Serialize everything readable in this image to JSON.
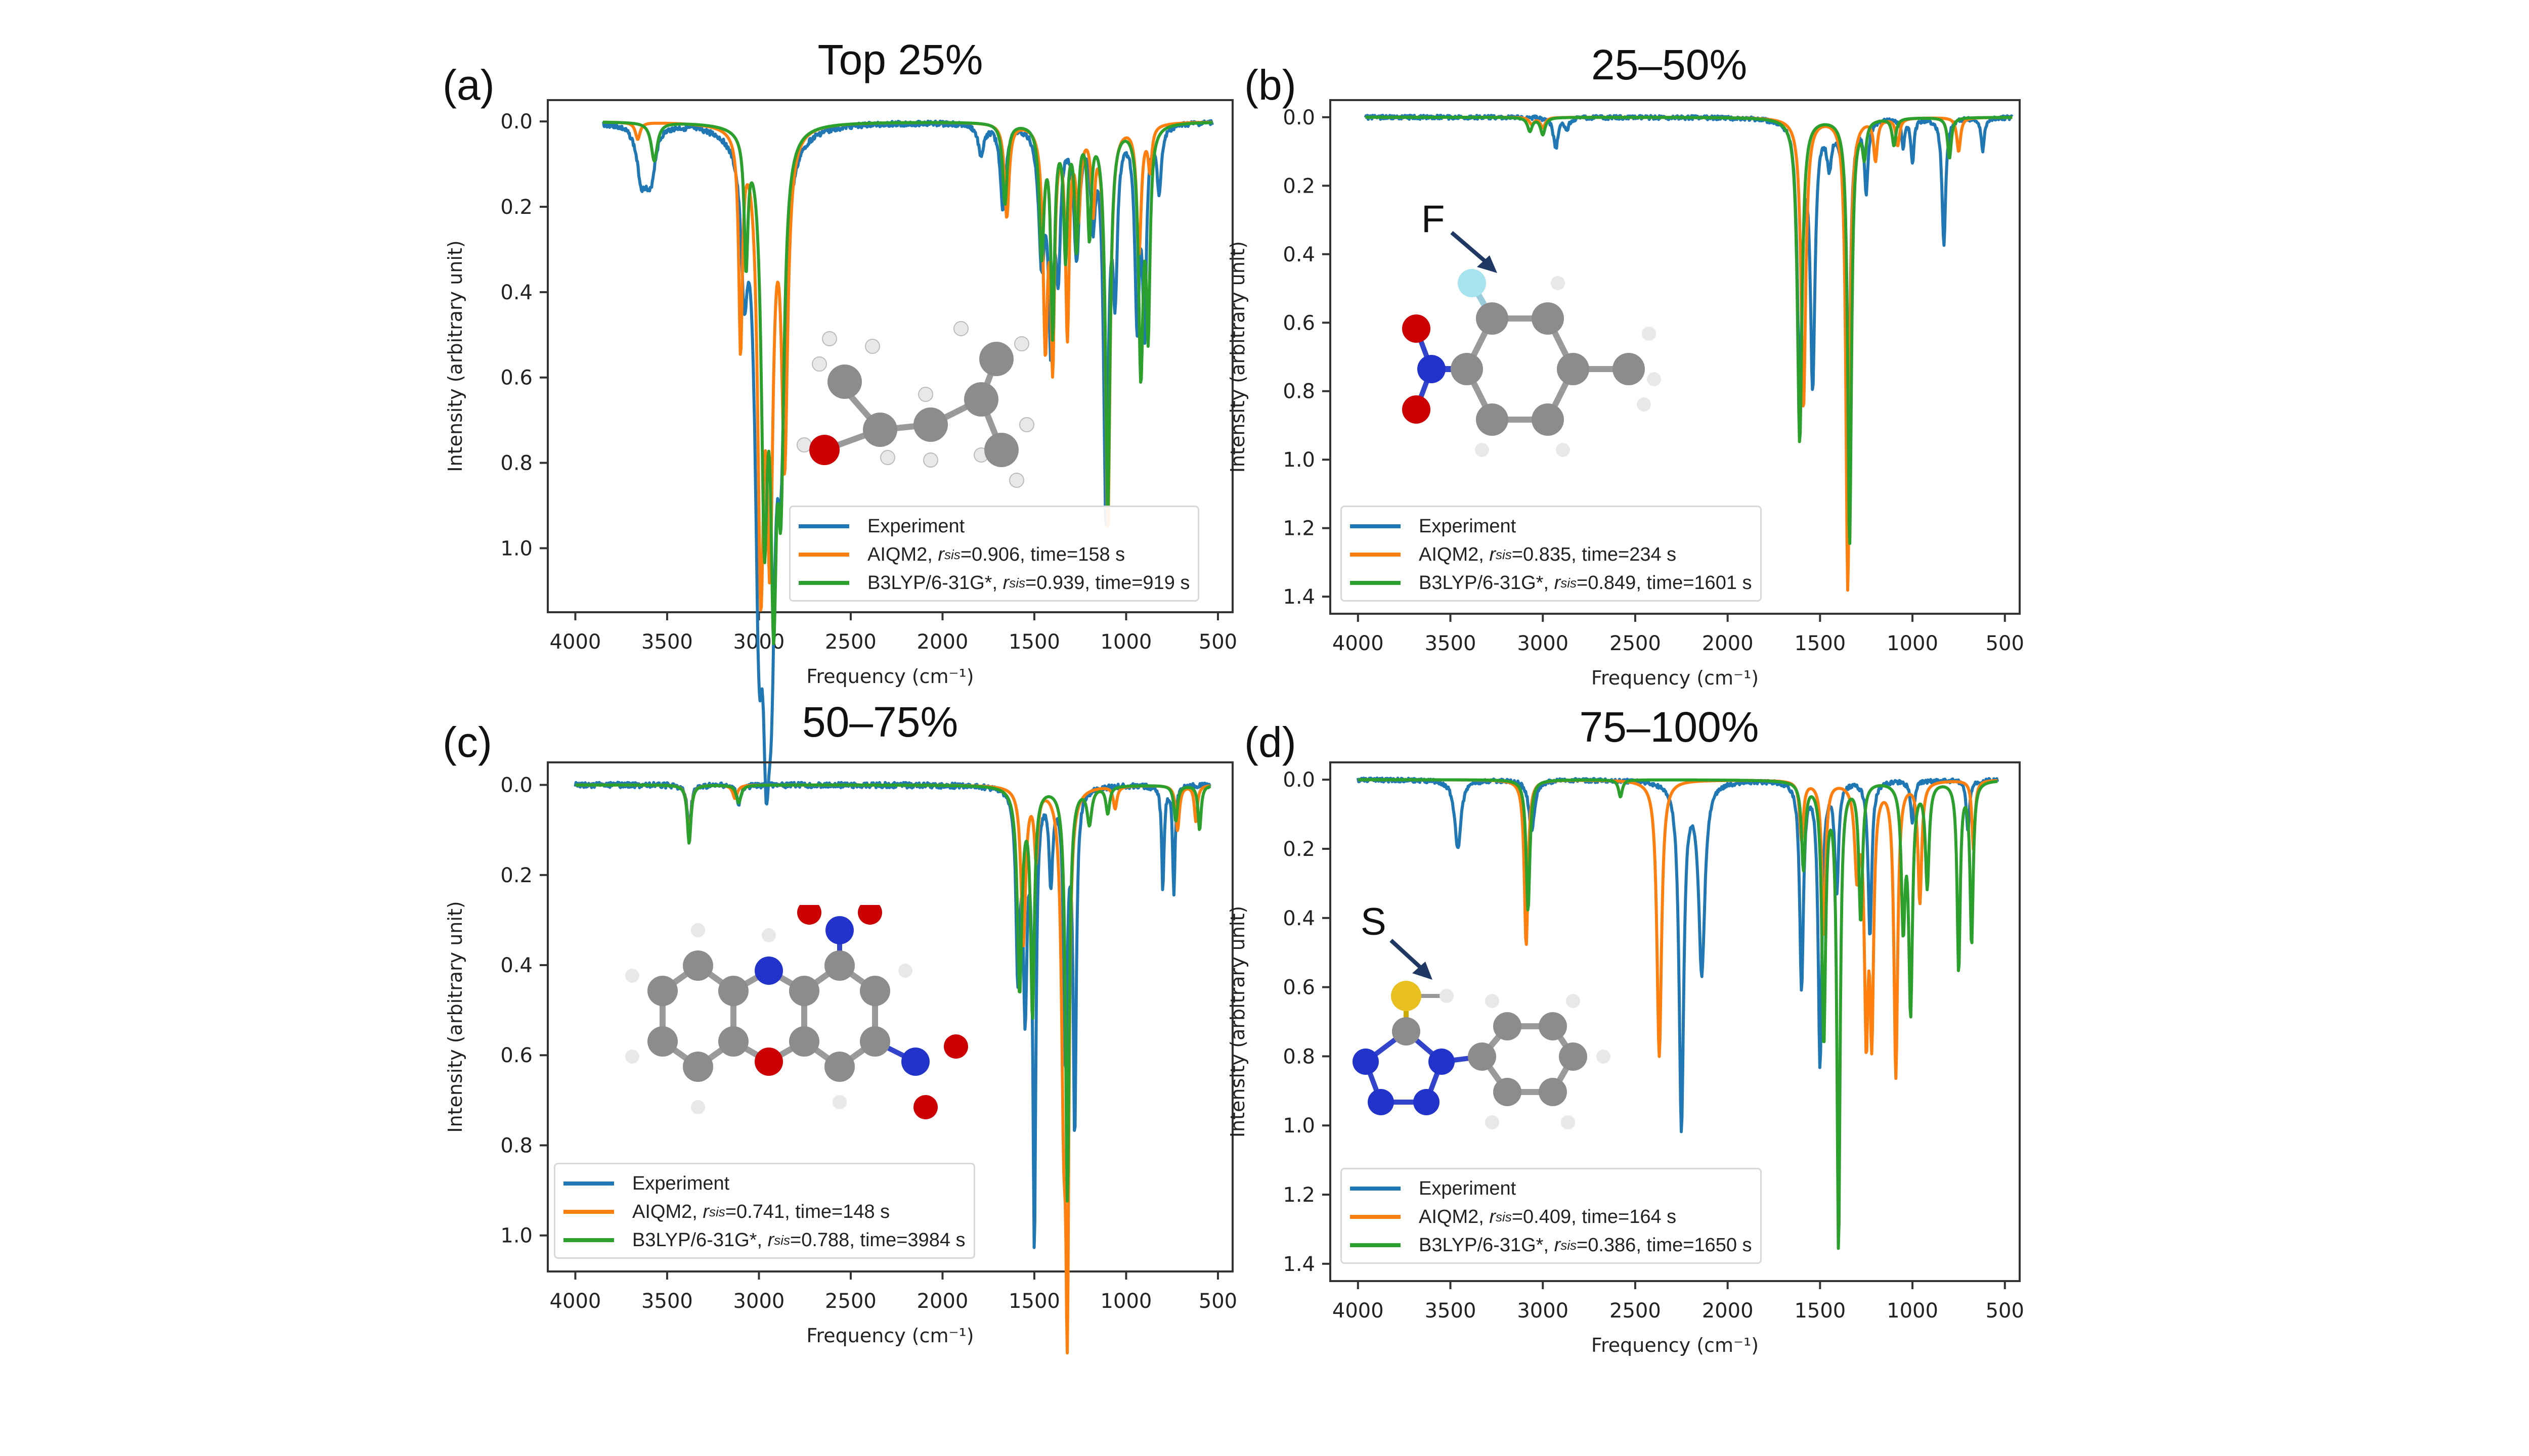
{
  "colors": {
    "experiment": "#1f77b4",
    "aiqm2": "#ff7f0e",
    "b3lyp": "#2ca02c",
    "arrow": "#1f3864"
  },
  "chart_data": [
    {
      "id": "a",
      "type": "line",
      "panel_label": "(a)",
      "title": "Top 25%",
      "xlabel": "Frequency (cm⁻¹)",
      "ylabel": "Intensity (arbitrary unit)",
      "xlim": [
        4150,
        420
      ],
      "ylim": [
        -0.05,
        1.15
      ],
      "y_inverted": true,
      "xticks": [
        4000,
        3500,
        3000,
        2500,
        2000,
        1500,
        1000,
        500
      ],
      "yticks": [
        "0.0",
        "0.2",
        "0.4",
        "0.6",
        "0.8",
        "1.0"
      ],
      "legend_position": "lower-right",
      "molecule_label": "",
      "series": [
        {
          "name": "Experiment",
          "method": "Experiment",
          "rsis": null,
          "time": null,
          "color_key": "experiment",
          "x_range": [
            3850,
            530
          ],
          "peaks": [
            [
              3640,
              0.12,
              30
            ],
            [
              3600,
              0.08,
              25
            ],
            [
              3580,
              0.06,
              25
            ],
            [
              3000,
              0.92,
              25
            ],
            [
              2960,
              0.95,
              25
            ],
            [
              2930,
              0.8,
              25
            ],
            [
              2880,
              0.6,
              25
            ],
            [
              3080,
              0.3,
              20
            ],
            [
              1790,
              0.07,
              20
            ],
            [
              1670,
              0.2,
              18
            ],
            [
              1460,
              0.3,
              20
            ],
            [
              1410,
              0.48,
              15
            ],
            [
              1370,
              0.3,
              15
            ],
            [
              1270,
              0.3,
              18
            ],
            [
              1180,
              0.2,
              15
            ],
            [
              1110,
              0.9,
              15
            ],
            [
              1060,
              0.35,
              15
            ],
            [
              940,
              0.45,
              15
            ],
            [
              900,
              0.45,
              12
            ],
            [
              820,
              0.15,
              15
            ]
          ]
        },
        {
          "name": "AIQM2, r_sis=0.906, time=158 s",
          "method": "AIQM2",
          "rsis": "0.906",
          "time": "158 s",
          "color_key": "aiqm2",
          "x_range": [
            3850,
            530
          ],
          "peaks": [
            [
              3660,
              0.04,
              15
            ],
            [
              3100,
              0.5,
              12
            ],
            [
              2990,
              1.0,
              20
            ],
            [
              2940,
              0.9,
              20
            ],
            [
              2860,
              0.75,
              20
            ],
            [
              1650,
              0.22,
              15
            ],
            [
              1440,
              0.5,
              15
            ],
            [
              1400,
              0.52,
              12
            ],
            [
              1320,
              0.48,
              12
            ],
            [
              1260,
              0.2,
              15
            ],
            [
              1180,
              0.18,
              12
            ],
            [
              1100,
              0.95,
              15
            ],
            [
              930,
              0.3,
              15
            ],
            [
              870,
              0.1,
              12
            ]
          ]
        },
        {
          "name": "B3LYP/6-31G*, r_sis=0.939, time=919 s",
          "method": "B3LYP/6-31G*",
          "rsis": "0.939",
          "time": "919 s",
          "color_key": "b3lyp",
          "x_range": [
            3850,
            530
          ],
          "peaks": [
            [
              3570,
              0.09,
              20
            ],
            [
              3070,
              0.3,
              12
            ],
            [
              2970,
              0.86,
              20
            ],
            [
              2920,
              0.96,
              20
            ],
            [
              2880,
              0.72,
              20
            ],
            [
              1660,
              0.19,
              15
            ],
            [
              1460,
              0.3,
              15
            ],
            [
              1400,
              0.48,
              12
            ],
            [
              1330,
              0.3,
              12
            ],
            [
              1270,
              0.28,
              12
            ],
            [
              1200,
              0.25,
              12
            ],
            [
              1100,
              0.9,
              15
            ],
            [
              920,
              0.57,
              15
            ],
            [
              880,
              0.45,
              12
            ]
          ]
        }
      ]
    },
    {
      "id": "b",
      "type": "line",
      "panel_label": "(b)",
      "title": "25–50%",
      "xlabel": "Frequency (cm⁻¹)",
      "ylabel": "Intensity (arbitrary unit)",
      "xlim": [
        4150,
        420
      ],
      "ylim": [
        -0.05,
        1.45
      ],
      "y_inverted": true,
      "xticks": [
        4000,
        3500,
        3000,
        2500,
        2000,
        1500,
        1000,
        500
      ],
      "yticks": [
        "0.0",
        "0.2",
        "0.4",
        "0.6",
        "0.8",
        "1.0",
        "1.2",
        "1.4"
      ],
      "legend_position": "lower-left",
      "molecule_label": "F",
      "series": [
        {
          "name": "Experiment",
          "method": "Experiment",
          "rsis": null,
          "time": null,
          "color_key": "experiment",
          "x_range": [
            3960,
            460
          ],
          "peaks": [
            [
              2930,
              0.09,
              15
            ],
            [
              2870,
              0.03,
              15
            ],
            [
              1610,
              0.78,
              15
            ],
            [
              1540,
              0.76,
              15
            ],
            [
              1450,
              0.12,
              15
            ],
            [
              1350,
              1.2,
              12
            ],
            [
              1250,
              0.2,
              12
            ],
            [
              1050,
              0.08,
              10
            ],
            [
              1000,
              0.13,
              10
            ],
            [
              830,
              0.37,
              12
            ],
            [
              620,
              0.1,
              10
            ]
          ]
        },
        {
          "name": "AIQM2, r_sis=0.835, time=234 s",
          "method": "AIQM2",
          "rsis": "0.835",
          "time": "234 s",
          "color_key": "aiqm2",
          "x_range": [
            3960,
            460
          ],
          "peaks": [
            [
              3060,
              0.02,
              15
            ],
            [
              3000,
              0.03,
              15
            ],
            [
              1590,
              0.85,
              15
            ],
            [
              1350,
              1.38,
              12
            ],
            [
              1200,
              0.12,
              12
            ],
            [
              1080,
              0.08,
              12
            ],
            [
              750,
              0.1,
              12
            ]
          ]
        },
        {
          "name": "B3LYP/6-31G*, r_sis=0.849, time=1601 s",
          "method": "B3LYP/6-31G*",
          "rsis": "0.849",
          "time": "1601 s",
          "color_key": "b3lyp",
          "x_range": [
            3960,
            460
          ],
          "peaks": [
            [
              3070,
              0.04,
              15
            ],
            [
              3000,
              0.05,
              15
            ],
            [
              1610,
              0.95,
              15
            ],
            [
              1340,
              1.25,
              12
            ],
            [
              1260,
              0.1,
              12
            ],
            [
              1100,
              0.08,
              12
            ],
            [
              800,
              0.12,
              12
            ]
          ]
        }
      ]
    },
    {
      "id": "c",
      "type": "line",
      "panel_label": "(c)",
      "title": "50–75%",
      "xlabel": "Frequency (cm⁻¹)",
      "ylabel": "Intensity (arbitrary unit)",
      "xlim": [
        4150,
        420
      ],
      "ylim": [
        -0.05,
        1.08
      ],
      "y_inverted": true,
      "xticks": [
        4000,
        3500,
        3000,
        2500,
        2000,
        1500,
        1000,
        500
      ],
      "yticks": [
        "0.0",
        "0.2",
        "0.4",
        "0.6",
        "0.8",
        "1.0"
      ],
      "legend_position": "lower-left",
      "molecule_label": "",
      "series": [
        {
          "name": "Experiment",
          "method": "Experiment",
          "rsis": null,
          "time": null,
          "color_key": "experiment",
          "x_range": [
            4000,
            540
          ],
          "peaks": [
            [
              3380,
              0.1,
              12
            ],
            [
              3110,
              0.04,
              15
            ],
            [
              1590,
              0.4,
              12
            ],
            [
              1550,
              0.47,
              12
            ],
            [
              1500,
              1.0,
              10
            ],
            [
              1410,
              0.2,
              12
            ],
            [
              1330,
              0.6,
              12
            ],
            [
              1280,
              0.75,
              10
            ],
            [
              800,
              0.23,
              8
            ],
            [
              740,
              0.24,
              8
            ]
          ]
        },
        {
          "name": "AIQM2, r_sis=0.741, time=148 s",
          "method": "AIQM2",
          "rsis": "0.741",
          "time": "148 s",
          "color_key": "aiqm2",
          "x_range": [
            4000,
            540
          ],
          "peaks": [
            [
              3380,
              0.12,
              12
            ],
            [
              3130,
              0.03,
              15
            ],
            [
              1560,
              0.35,
              15
            ],
            [
              1490,
              0.15,
              12
            ],
            [
              1340,
              0.65,
              15
            ],
            [
              1320,
              1.02,
              10
            ],
            [
              1060,
              0.05,
              12
            ],
            [
              720,
              0.1,
              12
            ],
            [
              620,
              0.08,
              10
            ]
          ]
        },
        {
          "name": "B3LYP/6-31G*, r_sis=0.788, time=3984 s",
          "method": "B3LYP/6-31G*",
          "rsis": "0.788",
          "time": "3984 s",
          "color_key": "b3lyp",
          "x_range": [
            4000,
            540
          ],
          "peaks": [
            [
              3380,
              0.13,
              12
            ],
            [
              3110,
              0.04,
              15
            ],
            [
              1580,
              0.45,
              15
            ],
            [
              1510,
              0.5,
              12
            ],
            [
              1320,
              0.92,
              12
            ],
            [
              1200,
              0.08,
              15
            ],
            [
              1100,
              0.06,
              12
            ],
            [
              730,
              0.08,
              12
            ],
            [
              600,
              0.1,
              10
            ]
          ]
        }
      ]
    },
    {
      "id": "d",
      "type": "line",
      "panel_label": "(d)",
      "title": "75–100%",
      "xlabel": "Frequency (cm⁻¹)",
      "ylabel": "Intensity (arbitrary unit)",
      "xlim": [
        4150,
        420
      ],
      "ylim": [
        -0.05,
        1.45
      ],
      "y_inverted": true,
      "xticks": [
        4000,
        3500,
        3000,
        2500,
        2000,
        1500,
        1000,
        500
      ],
      "yticks": [
        "0.0",
        "0.2",
        "0.4",
        "0.6",
        "0.8",
        "1.0",
        "1.2",
        "1.4"
      ],
      "legend_position": "lower-left",
      "molecule_label": "S",
      "series": [
        {
          "name": "Experiment",
          "method": "Experiment",
          "rsis": null,
          "time": null,
          "color_key": "experiment",
          "x_range": [
            4000,
            540
          ],
          "peaks": [
            [
              3460,
              0.2,
              20
            ],
            [
              3060,
              0.15,
              18
            ],
            [
              2250,
              1.0,
              15
            ],
            [
              2140,
              0.55,
              20
            ],
            [
              1600,
              0.6,
              12
            ],
            [
              1500,
              0.82,
              12
            ],
            [
              1410,
              0.32,
              12
            ],
            [
              1230,
              0.45,
              12
            ],
            [
              1000,
              0.12,
              12
            ],
            [
              700,
              0.15,
              10
            ]
          ]
        },
        {
          "name": "AIQM2, r_sis=0.409, time=164 s",
          "method": "AIQM2",
          "rsis": "0.409",
          "time": "164 s",
          "color_key": "aiqm2",
          "x_range": [
            4000,
            540
          ],
          "peaks": [
            [
              3090,
              0.48,
              12
            ],
            [
              2370,
              0.8,
              15
            ],
            [
              1600,
              0.17,
              12
            ],
            [
              1480,
              0.45,
              12
            ],
            [
              1300,
              0.25,
              15
            ],
            [
              1250,
              0.68,
              12
            ],
            [
              1220,
              0.68,
              12
            ],
            [
              1090,
              0.85,
              12
            ],
            [
              960,
              0.35,
              12
            ],
            [
              670,
              0.2,
              10
            ]
          ]
        },
        {
          "name": "B3LYP/6-31G*, r_sis=0.386, time=1650 s",
          "method": "B3LYP/6-31G*",
          "rsis": "0.386",
          "time": "1650 s",
          "color_key": "b3lyp",
          "x_range": [
            4000,
            540
          ],
          "peaks": [
            [
              3080,
              0.38,
              12
            ],
            [
              2580,
              0.05,
              12
            ],
            [
              1590,
              0.25,
              12
            ],
            [
              1480,
              0.75,
              12
            ],
            [
              1400,
              1.35,
              10
            ],
            [
              1280,
              0.4,
              12
            ],
            [
              1050,
              0.4,
              12
            ],
            [
              1010,
              0.65,
              12
            ],
            [
              920,
              0.3,
              12
            ],
            [
              750,
              0.55,
              10
            ],
            [
              680,
              0.47,
              10
            ]
          ]
        }
      ]
    }
  ]
}
